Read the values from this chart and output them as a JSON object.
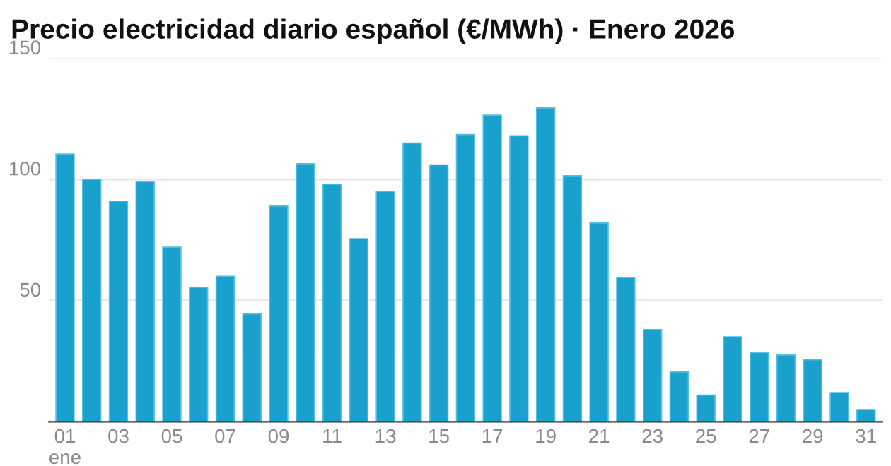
{
  "chart_data": {
    "type": "bar",
    "title": "Precio electricidad diario español (€/MWh) · Enero 2026",
    "categories": [
      "01\nene",
      null,
      "03",
      null,
      "05",
      null,
      "07",
      null,
      "09",
      null,
      "11",
      null,
      "13",
      null,
      "15",
      null,
      "17",
      null,
      "19",
      null,
      "21",
      null,
      "23",
      null,
      "25",
      null,
      "27",
      null,
      "29",
      null,
      "31"
    ],
    "values": [
      110.5,
      100,
      91,
      99,
      72,
      55.5,
      60,
      44.5,
      89,
      106.5,
      98,
      75.5,
      95,
      115,
      106,
      118.5,
      126.5,
      118,
      129.5,
      101.5,
      82,
      59.5,
      38,
      20.5,
      11,
      35,
      28.5,
      27.5,
      25.5,
      12,
      5
    ],
    "color": "#19a0cc",
    "ylim": [
      0,
      150
    ],
    "yticks": [
      50,
      100,
      150
    ],
    "grid": "y"
  }
}
